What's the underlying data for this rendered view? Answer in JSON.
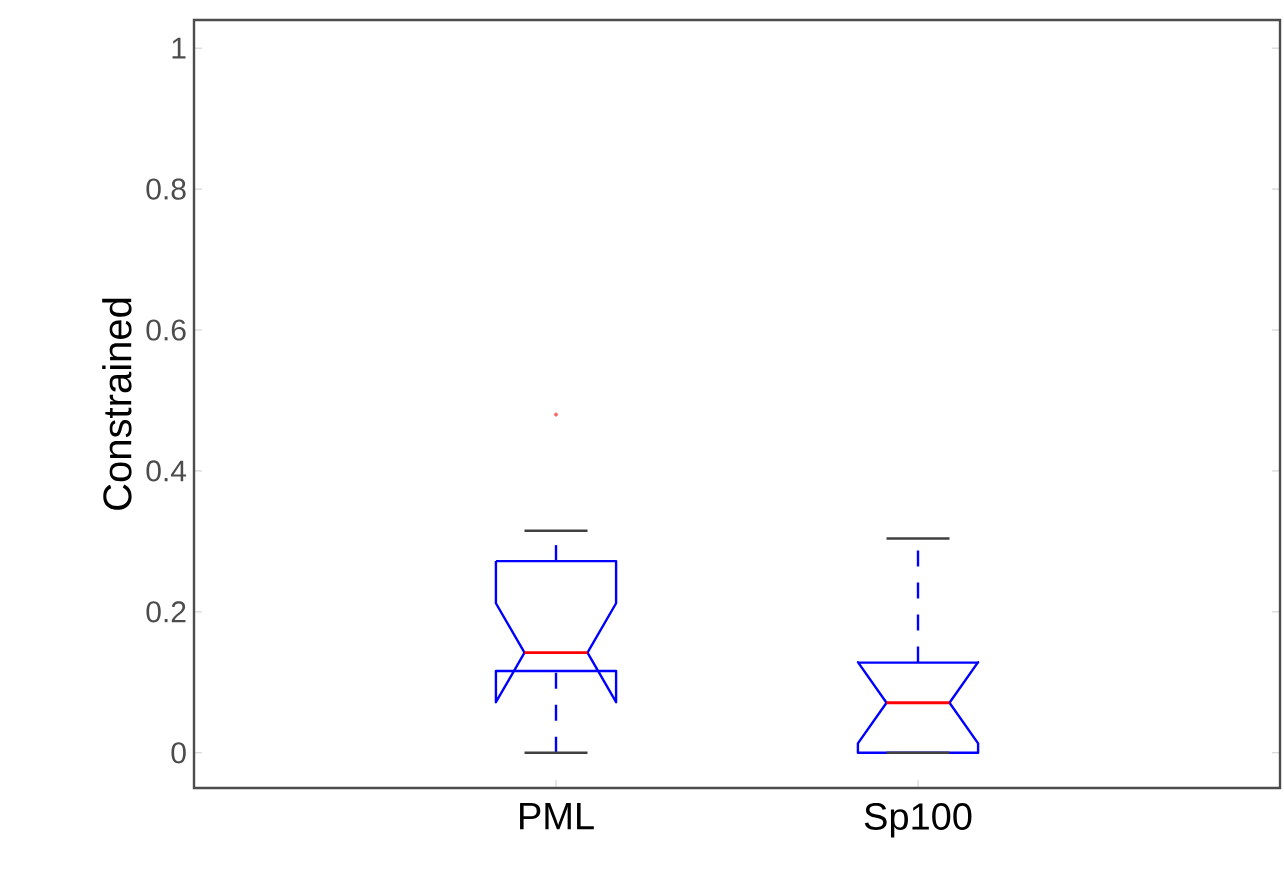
{
  "chart_data": {
    "type": "box",
    "ylabel": "Constrained",
    "categories": [
      "PML",
      "Sp100"
    ],
    "boxes": [
      {
        "low": 0,
        "q1": 0.116,
        "median": 0.142,
        "q3": 0.272,
        "high": 0.315,
        "outliers": [
          0.48
        ]
      },
      {
        "low": 0,
        "q1": 0,
        "median": 0.071,
        "q3": 0.128,
        "high": 0.304
      }
    ],
    "ylim": [
      -0.05,
      1.04
    ],
    "yticks": [
      0,
      0.2,
      0.4,
      0.6,
      0.8,
      1
    ]
  }
}
